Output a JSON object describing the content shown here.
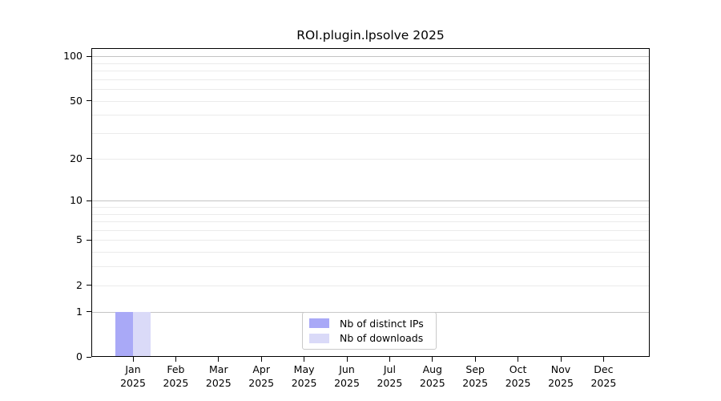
{
  "title": "ROI.plugin.lpsolve 2025",
  "chart_data": {
    "type": "bar",
    "title": "ROI.plugin.lpsolve 2025",
    "categories": [
      "Jan 2025",
      "Feb 2025",
      "Mar 2025",
      "Apr 2025",
      "May 2025",
      "Jun 2025",
      "Jul 2025",
      "Aug 2025",
      "Sep 2025",
      "Oct 2025",
      "Nov 2025",
      "Dec 2025"
    ],
    "x_tick_month_labels": [
      "Jan",
      "Feb",
      "Mar",
      "Apr",
      "May",
      "Jun",
      "Jul",
      "Aug",
      "Sep",
      "Oct",
      "Nov",
      "Dec"
    ],
    "x_tick_year_label": "2025",
    "series": [
      {
        "name": "Nb of distinct IPs",
        "color": "#a9a9f7",
        "values": [
          1,
          0,
          0,
          0,
          0,
          0,
          0,
          0,
          0,
          0,
          0,
          0
        ]
      },
      {
        "name": "Nb of downloads",
        "color": "#dadaf8",
        "values": [
          1,
          0,
          0,
          0,
          0,
          0,
          0,
          0,
          0,
          0,
          0,
          0
        ]
      }
    ],
    "xlabel": "",
    "ylabel": "",
    "y_scale": "log10(value+1)",
    "ylim": [
      0,
      113
    ],
    "y_tick_values": [
      100,
      50,
      20,
      10,
      5,
      2,
      1,
      0
    ],
    "y_tick_labels": [
      "100",
      "50",
      "20",
      "10",
      "5",
      "2",
      "1",
      "0"
    ],
    "y_major_gridlines": [
      1,
      10,
      100
    ],
    "y_minor_gridlines": [
      2,
      3,
      4,
      5,
      6,
      7,
      8,
      9,
      20,
      30,
      40,
      50,
      60,
      70,
      80,
      90
    ],
    "grid": "horizontal",
    "legend_position": "bottom-center"
  },
  "colors": {
    "bar_distinct_ips": "#a9a9f7",
    "bar_downloads": "#dadaf8",
    "grid_minor": "#ebebeb",
    "grid_major": "#c4c4c4",
    "spine": "#000000",
    "legend_border": "#c9c9c9",
    "text": "#000000",
    "background": "#ffffff"
  }
}
